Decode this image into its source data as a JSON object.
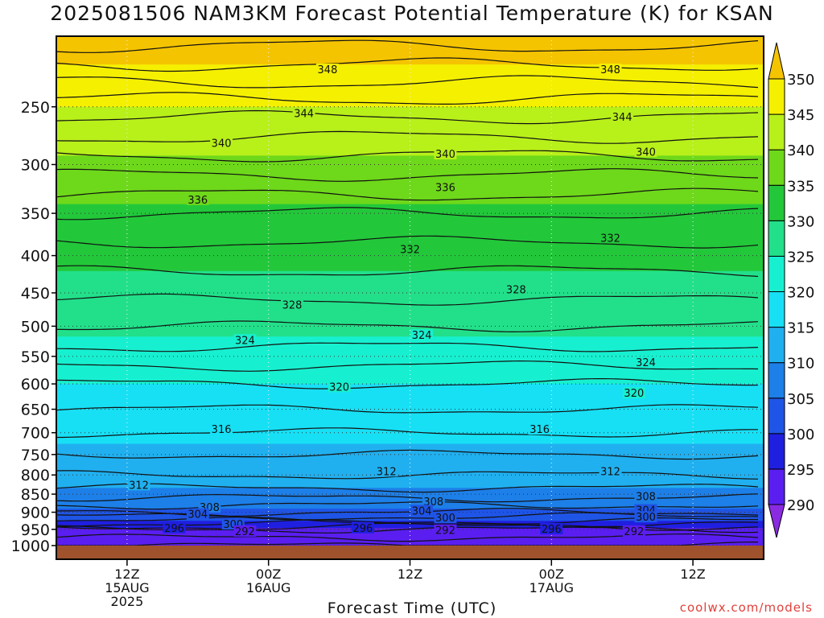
{
  "chart_data": {
    "type": "heatmap",
    "title": "2025081506 NAM3KM Forecast Potential Temperature (K) for KSAN",
    "xlabel": "Forecast Time (UTC)",
    "ylabel": "",
    "credit": "coolwx.com/models",
    "y_axis": {
      "scale": "log",
      "direction": "inverted",
      "ticks": [
        250,
        300,
        350,
        400,
        450,
        500,
        550,
        600,
        650,
        700,
        750,
        800,
        850,
        900,
        950,
        1000
      ],
      "range": [
        200,
        1000
      ]
    },
    "x_ticks": [
      {
        "hours": 6,
        "lines": [
          "12Z",
          "15AUG",
          "2025"
        ]
      },
      {
        "hours": 18,
        "lines": [
          "00Z",
          "16AUG"
        ]
      },
      {
        "hours": 30,
        "lines": [
          "12Z"
        ]
      },
      {
        "hours": 42,
        "lines": [
          "00Z",
          "17AUG"
        ]
      },
      {
        "hours": 54,
        "lines": [
          "12Z"
        ]
      }
    ],
    "x_range": [
      0,
      60
    ],
    "colorbar": {
      "levels": [
        290,
        295,
        300,
        305,
        310,
        315,
        320,
        325,
        330,
        335,
        340,
        345,
        350
      ],
      "labels": [
        "290",
        "295",
        "300",
        "305",
        "310",
        "315",
        "320",
        "325",
        "330",
        "335",
        "340",
        "345",
        "350"
      ],
      "colors": [
        "#8a2be2",
        "#5a1ef0",
        "#1f1fe0",
        "#1f55e6",
        "#1d7fe8",
        "#20b0f0",
        "#17e0f5",
        "#17f0d0",
        "#22e08a",
        "#22c83a",
        "#6ed81a",
        "#b8f01a",
        "#f5f000",
        "#f5c400"
      ]
    },
    "profile": [
      {
        "p": 200,
        "theta": 353
      },
      {
        "p": 250,
        "theta": 345
      },
      {
        "p": 300,
        "theta": 339
      },
      {
        "p": 350,
        "theta": 334
      },
      {
        "p": 400,
        "theta": 331
      },
      {
        "p": 450,
        "theta": 328.5
      },
      {
        "p": 500,
        "theta": 326
      },
      {
        "p": 550,
        "theta": 323
      },
      {
        "p": 600,
        "theta": 320
      },
      {
        "p": 650,
        "theta": 318
      },
      {
        "p": 700,
        "theta": 316
      },
      {
        "p": 750,
        "theta": 314
      },
      {
        "p": 800,
        "theta": 312
      },
      {
        "p": 850,
        "theta": 309
      },
      {
        "p": 900,
        "theta": 304
      },
      {
        "p": 925,
        "theta": 300
      },
      {
        "p": 950,
        "theta": 294
      },
      {
        "p": 1000,
        "theta": 290
      }
    ],
    "contour_labels": [
      {
        "value": "348",
        "hours": 23,
        "p": 222
      },
      {
        "value": "348",
        "hours": 47,
        "p": 222
      },
      {
        "value": "344",
        "hours": 21,
        "p": 255
      },
      {
        "value": "344",
        "hours": 48,
        "p": 258
      },
      {
        "value": "340",
        "hours": 14,
        "p": 280
      },
      {
        "value": "340",
        "hours": 33,
        "p": 290
      },
      {
        "value": "340",
        "hours": 50,
        "p": 288
      },
      {
        "value": "336",
        "hours": 12,
        "p": 335
      },
      {
        "value": "336",
        "hours": 33,
        "p": 322
      },
      {
        "value": "332",
        "hours": 30,
        "p": 392
      },
      {
        "value": "332",
        "hours": 47,
        "p": 378
      },
      {
        "value": "328",
        "hours": 20,
        "p": 467
      },
      {
        "value": "328",
        "hours": 39,
        "p": 445
      },
      {
        "value": "324",
        "hours": 16,
        "p": 522
      },
      {
        "value": "324",
        "hours": 31,
        "p": 514
      },
      {
        "value": "324",
        "hours": 50,
        "p": 560
      },
      {
        "value": "320",
        "hours": 24,
        "p": 605
      },
      {
        "value": "320",
        "hours": 49,
        "p": 617
      },
      {
        "value": "316",
        "hours": 14,
        "p": 692
      },
      {
        "value": "316",
        "hours": 41,
        "p": 692
      },
      {
        "value": "312",
        "hours": 7,
        "p": 825
      },
      {
        "value": "312",
        "hours": 28,
        "p": 790
      },
      {
        "value": "312",
        "hours": 47,
        "p": 790
      },
      {
        "value": "308",
        "hours": 13,
        "p": 885
      },
      {
        "value": "308",
        "hours": 32,
        "p": 870
      },
      {
        "value": "308",
        "hours": 50,
        "p": 855
      },
      {
        "value": "304",
        "hours": 12,
        "p": 905
      },
      {
        "value": "304",
        "hours": 31,
        "p": 895
      },
      {
        "value": "304",
        "hours": 50,
        "p": 893
      },
      {
        "value": "300",
        "hours": 15,
        "p": 934
      },
      {
        "value": "300",
        "hours": 33,
        "p": 915
      },
      {
        "value": "300",
        "hours": 50,
        "p": 913
      },
      {
        "value": "296",
        "hours": 10,
        "p": 945
      },
      {
        "value": "296",
        "hours": 26,
        "p": 945
      },
      {
        "value": "296",
        "hours": 42,
        "p": 948
      },
      {
        "value": "292",
        "hours": 16,
        "p": 955
      },
      {
        "value": "292",
        "hours": 33,
        "p": 952
      },
      {
        "value": "292",
        "hours": 49,
        "p": 955
      }
    ]
  }
}
